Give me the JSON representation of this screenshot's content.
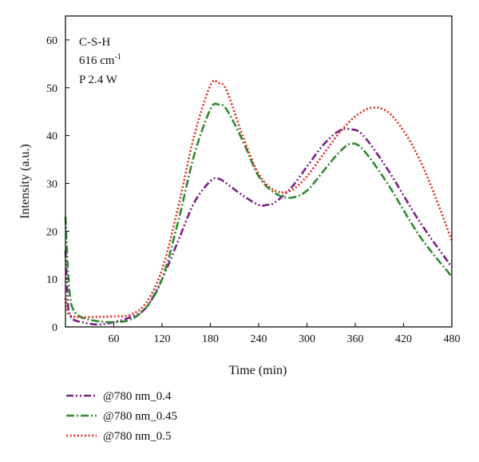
{
  "chart_data": {
    "type": "line",
    "xlabel": "Time (min)",
    "ylabel": "Intensity (a.u.)",
    "xlim": [
      0,
      480
    ],
    "ylim": [
      0,
      65
    ],
    "xticks": [
      60,
      120,
      180,
      240,
      300,
      360,
      420,
      480
    ],
    "yticks": [
      0,
      10,
      20,
      30,
      40,
      50,
      60
    ],
    "grid": false,
    "legend_position": "bottom-left, below plot",
    "annotations": {
      "line1": "C-S-H",
      "line2_value": "616 cm",
      "line2_sup": "-1",
      "line3": "P 2.4 W"
    },
    "series": [
      {
        "name": "@780 nm_0.4",
        "color": "#7b1f86",
        "dash": "dash-dot-dot",
        "x": [
          0,
          3,
          6,
          10,
          20,
          40,
          60,
          80,
          100,
          120,
          140,
          160,
          180,
          190,
          200,
          220,
          240,
          250,
          260,
          280,
          300,
          320,
          340,
          355,
          370,
          400,
          440,
          480
        ],
        "y": [
          16,
          5,
          2.5,
          1.5,
          1,
          0.5,
          1,
          2,
          4,
          10,
          18,
          26,
          30.5,
          31,
          30,
          27.5,
          25.5,
          25.5,
          26,
          29,
          33.5,
          38,
          41,
          41.3,
          40,
          33,
          22,
          12.5
        ]
      },
      {
        "name": "@780 nm_0.45",
        "color": "#2e8b2e",
        "dash": "dash-dot",
        "x": [
          0,
          3,
          6,
          10,
          20,
          40,
          60,
          80,
          100,
          120,
          140,
          160,
          180,
          190,
          200,
          220,
          240,
          260,
          280,
          300,
          320,
          340,
          355,
          370,
          400,
          440,
          480
        ],
        "y": [
          23,
          12,
          6,
          3.5,
          2,
          1.2,
          1,
          1.5,
          4,
          10,
          22,
          36,
          45.5,
          46.5,
          45.5,
          39,
          31.5,
          28,
          27,
          28.5,
          32.5,
          36.5,
          38.3,
          37,
          30,
          19,
          10.5
        ]
      },
      {
        "name": "@780 nm_0.5",
        "color": "#e02a1a",
        "dash": "dotted",
        "x": [
          0,
          3,
          6,
          10,
          20,
          40,
          60,
          80,
          100,
          120,
          140,
          160,
          180,
          190,
          200,
          220,
          240,
          260,
          280,
          300,
          320,
          340,
          360,
          380,
          400,
          420,
          440,
          460,
          480
        ],
        "y": [
          6,
          3,
          2.4,
          2.2,
          2,
          2.1,
          2.2,
          2.5,
          5,
          12,
          25,
          40,
          50.5,
          51,
          49.5,
          40,
          32,
          28.5,
          28.5,
          31.5,
          36,
          40.5,
          44,
          45.8,
          45,
          41,
          35,
          27,
          18
        ]
      }
    ]
  }
}
